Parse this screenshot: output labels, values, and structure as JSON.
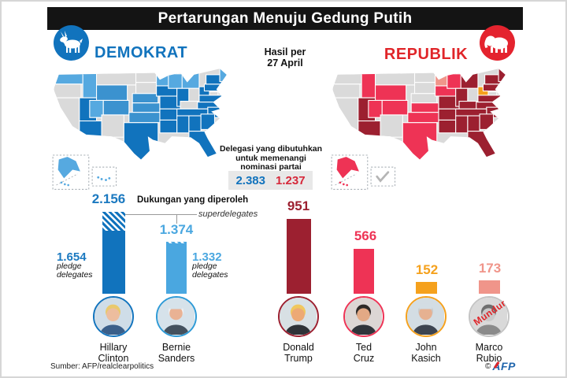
{
  "frame": {
    "title": "Pertarungan Menuju Gedung Putih"
  },
  "header": {
    "results_label": "Hasil per\n27 April"
  },
  "parties": {
    "democrat": {
      "label": "DEMOKRAT",
      "color": "#1173bd",
      "icon": "donkey"
    },
    "republican": {
      "label": "REPUBLIK",
      "color": "#e02529",
      "icon": "elephant"
    }
  },
  "delegates_needed": {
    "caption": "Delegasi yang dibutuhkan\nuntuk memenangi\nnominasi partai",
    "democrat": "2.383",
    "republican": "1.237"
  },
  "chart_data": [
    {
      "id": "democrat-delegates",
      "type": "bar",
      "title": "Dukungan yang diperoleh",
      "annotation": "superdelegates",
      "categories": [
        "Hillary Clinton",
        "Bernie Sanders"
      ],
      "series": [
        {
          "name": "total support",
          "values": [
            2156,
            1374
          ],
          "display": [
            "2.156",
            "1.374"
          ]
        },
        {
          "name": "pledge delegates",
          "values": [
            1654,
            1332
          ],
          "display": [
            "1.654",
            "1.332"
          ]
        }
      ],
      "bar_colors": [
        "#1173bd",
        "#4aa7e0"
      ],
      "unit_label": "pledge\ndelegates",
      "note": "hatched bar top = superdelegates"
    },
    {
      "id": "republican-delegates",
      "type": "bar",
      "categories": [
        "Donald Trump",
        "Ted Cruz",
        "John Kasich",
        "Marco Rubio"
      ],
      "values": [
        951,
        566,
        152,
        173
      ],
      "display": [
        "951",
        "566",
        "152",
        "173"
      ],
      "bar_colors": [
        "#9c2030",
        "#ee3355",
        "#f5a11d",
        "#f0958a"
      ],
      "status": [
        "",
        "",
        "",
        "Mundur"
      ]
    }
  ],
  "maps": {
    "legend_colors": {
      "democrat": {
        "clinton": "#1173bd",
        "sanders": "#56a9e0",
        "sanders_med": "#3b92cf",
        "none": "#dadada"
      },
      "republican": {
        "trump": "#9c2030",
        "cruz": "#ee3355",
        "kasich": "#f5a11d",
        "rubio": "#f0958a",
        "none": "#dadada"
      }
    },
    "democrat": {
      "inset": "islands",
      "states": {
        "WA": "sanders",
        "OR": "none",
        "CA": "none",
        "ID": "sanders",
        "NV": "clinton",
        "UT": "sanders",
        "AZ": "clinton",
        "MT": "none",
        "WY": "sanders_med",
        "CO": "sanders_med",
        "NM": "none",
        "ND": "none",
        "SD": "none",
        "NE": "sanders_med",
        "KS": "sanders_med",
        "OK": "sanders_med",
        "TX": "clinton",
        "MN": "sanders",
        "IA": "clinton",
        "MO": "clinton",
        "AR": "clinton",
        "LA": "clinton",
        "WI": "sanders",
        "IL": "clinton",
        "MI": "sanders",
        "IN": "none",
        "OH": "clinton",
        "KY": "none",
        "WV": "none",
        "TN": "clinton",
        "MS": "clinton",
        "AL": "clinton",
        "GA": "clinton",
        "FL": "clinton",
        "SC": "clinton",
        "NC": "clinton",
        "VA": "clinton",
        "PA": "clinton",
        "NY": "clinton",
        "NENG": "sanders",
        "AK": "sanders"
      }
    },
    "republican": {
      "inset": "check",
      "states": {
        "WA": "none",
        "OR": "none",
        "CA": "none",
        "ID": "cruz",
        "NV": "trump",
        "UT": "cruz",
        "AZ": "trump",
        "MT": "none",
        "WY": "cruz",
        "CO": "cruz",
        "NM": "none",
        "ND": "none",
        "SD": "none",
        "NE": "none",
        "KS": "cruz",
        "OK": "cruz",
        "TX": "cruz",
        "MN": "rubio",
        "IA": "cruz",
        "MO": "trump",
        "AR": "trump",
        "LA": "trump",
        "WI": "cruz",
        "IL": "trump",
        "MI": "trump",
        "IN": "none",
        "OH": "kasich",
        "KY": "trump",
        "WV": "none",
        "TN": "trump",
        "MS": "trump",
        "AL": "trump",
        "GA": "trump",
        "FL": "trump",
        "SC": "trump",
        "NC": "trump",
        "VA": "trump",
        "PA": "trump",
        "NY": "trump",
        "NENG": "trump",
        "AK": "cruz"
      }
    }
  },
  "candidates": [
    {
      "id": "clinton",
      "name": "Hillary\nClinton",
      "party": "democrat",
      "color": "#1173bd"
    },
    {
      "id": "sanders",
      "name": "Bernie\nSanders",
      "party": "democrat",
      "color": "#4aa7e0"
    },
    {
      "id": "trump",
      "name": "Donald\nTrump",
      "party": "republican",
      "color": "#9c2030"
    },
    {
      "id": "cruz",
      "name": "Ted\nCruz",
      "party": "republican",
      "color": "#ee3355"
    },
    {
      "id": "kasich",
      "name": "John\nKasich",
      "party": "republican",
      "color": "#f5a11d"
    },
    {
      "id": "rubio",
      "name": "Marco\nRubio",
      "party": "republican",
      "color": "#b9b9b9",
      "status": "Mundur"
    }
  ],
  "footer": {
    "source": "Sumber: AFP/realclearpolitics",
    "copyright": "©",
    "agency": "AFP"
  }
}
